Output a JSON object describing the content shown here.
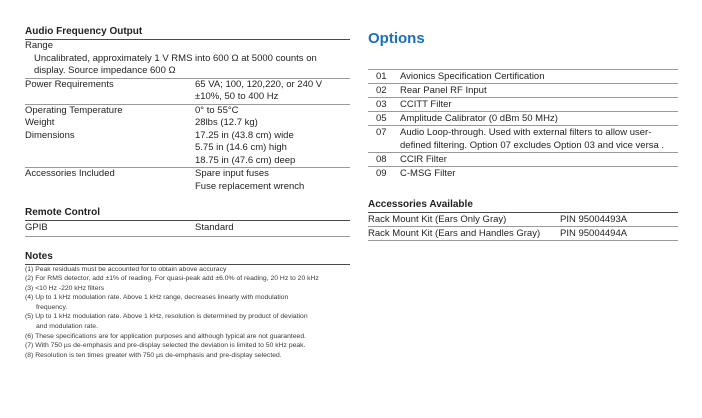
{
  "left": {
    "audio_title": "Audio Frequency Output",
    "range_label": "Range",
    "range_line1": "Uncalibrated, approximately 1 V RMS into 600 Ω at 5000 counts on",
    "range_line2": "display. Source impedance 600 Ω",
    "specs": [
      {
        "k": "Power Requirements",
        "v1": "65 VA; 100, 120,220, or 240 V",
        "v2": "±10%, 50 to 400 Hz",
        "v3": ""
      },
      {
        "k": "Operating Temperature",
        "v1": "0° to 55°C",
        "v2": "",
        "v3": ""
      },
      {
        "k": "Weight",
        "v1": "28lbs (12.7 kg)",
        "v2": "",
        "v3": ""
      },
      {
        "k": "Dimensions",
        "v1": "17.25 in (43.8 cm) wide",
        "v2": "5.75 in (14.6 cm) high",
        "v3": "18.75 in (47.6 cm) deep"
      },
      {
        "k": "Accessories Included",
        "v1": "Spare input fuses",
        "v2": "Fuse replacement wrench",
        "v3": ""
      }
    ],
    "remote_title": "Remote Control",
    "remote_k": "GPIB",
    "remote_v": "Standard",
    "notes_title": "Notes",
    "notes": [
      "(1) Peak residuals must be accounted for to obtain above accuracy",
      "(2) For RMS detector, add ±1% of reading. For quasi-peak add ±6.0% of reading, 20 Hz to 20 kHz",
      "(3) <10 Hz -220 kHz filters",
      "(4) Up to 1 kHz modulation rate. Above 1 kHz range, decreases linearly with modulation",
      "frequency.",
      "(5) Up to 1 kHz modulation rate. Above 1 kHz, resolution is determined by product of deviation",
      "and modulation rate.",
      "(6) These specifications are for application purposes and although typical are not guaranteed.",
      "(7) With 750 µs de-emphasis and pre-display selected the deviation is limited to 50 kHz peak.",
      "(8) Resolution is ten times greater with 750 µs de-emphasis and pre-display selected."
    ]
  },
  "right": {
    "options_title": "Options",
    "options": [
      {
        "n": "01",
        "t": "Avionics Specification Certification"
      },
      {
        "n": "02",
        "t": "Rear Panel RF Input"
      },
      {
        "n": "03",
        "t": "CCITT Filter"
      },
      {
        "n": "05",
        "t": "Amplitude Calibrator (0 dBm 50 MHz)"
      },
      {
        "n": "07",
        "t": "Audio Loop-through. Used with external filters to allow user-"
      },
      {
        "n": "",
        "t": "defined filtering. Option 07 excludes Option 03 and vice versa ."
      },
      {
        "n": "08",
        "t": "CCIR Filter"
      },
      {
        "n": "09",
        "t": "C-MSG Filter"
      }
    ],
    "accessories_title": "Accessories Available",
    "accessories": [
      {
        "item": "Rack Mount Kit (Ears Only Gray)",
        "pn": "PIN 95004493A"
      },
      {
        "item": "Rack Mount Kit (Ears and Handles Gray)",
        "pn": "PIN 95004494A"
      }
    ]
  },
  "colors": {
    "accent": "#1d6fb8",
    "text": "#231f20"
  }
}
